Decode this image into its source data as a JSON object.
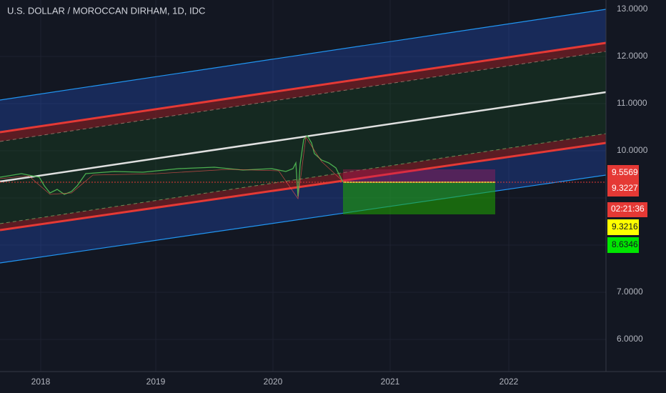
{
  "header": {
    "title": "U.S. DOLLAR / MOROCCAN DIRHAM, 1D, IDC"
  },
  "price_axis": [
    "13.0000",
    "12.0000",
    "11.0000",
    "10.0000",
    "7.0000",
    "6.0000"
  ],
  "price_tags": [
    "9.5569",
    "9.3227",
    "02:21:36",
    "9.3216",
    "8.6346"
  ],
  "time_axis": [
    "2018",
    "2019",
    "2020",
    "2021",
    "2022"
  ]
}
